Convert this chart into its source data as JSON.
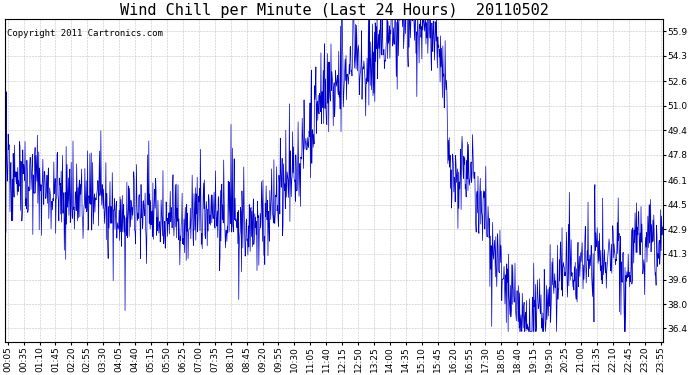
{
  "title": "Wind Chill per Minute (Last 24 Hours)  20110502",
  "copyright_text": "Copyright 2011 Cartronics.com",
  "line_color": "#0000CC",
  "bg_color": "#ffffff",
  "plot_bg_color": "#ffffff",
  "grid_color": "#aaaaaa",
  "yticks": [
    36.4,
    38.0,
    39.6,
    41.3,
    42.9,
    44.5,
    46.1,
    47.8,
    49.4,
    51.0,
    52.6,
    54.3,
    55.9
  ],
  "ylim": [
    35.5,
    56.7
  ],
  "xtick_labels": [
    "00:05",
    "00:35",
    "01:10",
    "01:45",
    "02:20",
    "02:55",
    "03:30",
    "04:05",
    "04:40",
    "05:15",
    "05:50",
    "06:25",
    "07:00",
    "07:35",
    "08:10",
    "08:45",
    "09:20",
    "09:55",
    "10:30",
    "11:05",
    "11:40",
    "12:15",
    "12:50",
    "13:25",
    "14:00",
    "14:35",
    "15:10",
    "15:45",
    "16:20",
    "16:55",
    "17:30",
    "18:05",
    "18:40",
    "19:15",
    "19:50",
    "20:25",
    "21:00",
    "21:35",
    "22:10",
    "22:45",
    "23:20",
    "23:55"
  ],
  "title_fontsize": 11,
  "tick_fontsize": 6.5,
  "copyright_fontsize": 6.5
}
